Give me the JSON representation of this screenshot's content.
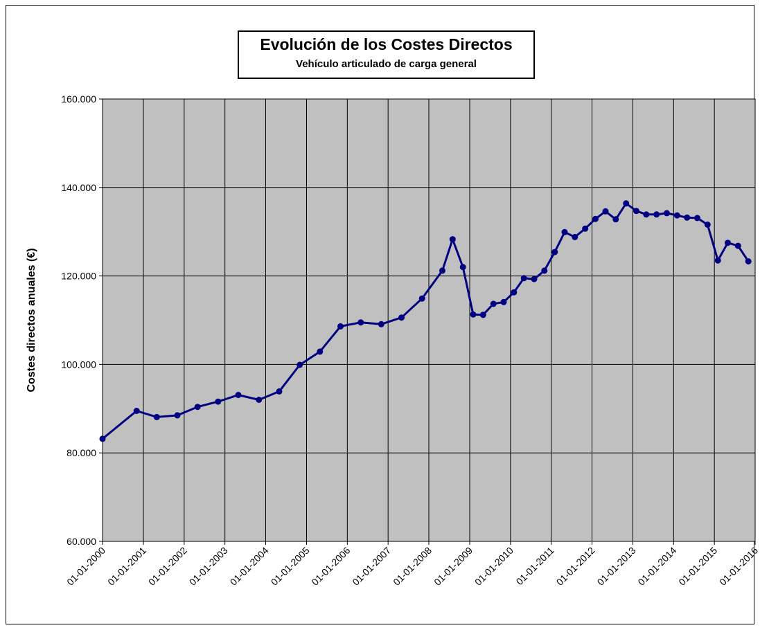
{
  "chart_data": {
    "type": "line",
    "title": "Evolución de los Costes Directos",
    "subtitle": "Vehículo articulado de carga general",
    "xlabel": "",
    "ylabel": "Costes directos anuales (€)",
    "ylim": [
      60000,
      160000
    ],
    "xlim": [
      "2000-01-01",
      "2016-01-01"
    ],
    "y_ticks": [
      "60.000",
      "80.000",
      "100.000",
      "120.000",
      "140.000",
      "160.000"
    ],
    "x_ticks": [
      "01-01-2000",
      "01-01-2001",
      "01-01-2002",
      "01-01-2003",
      "01-01-2004",
      "01-01-2005",
      "01-01-2006",
      "01-01-2007",
      "01-01-2008",
      "01-01-2009",
      "01-01-2010",
      "01-01-2011",
      "01-01-2012",
      "01-01-2013",
      "01-01-2014",
      "01-01-2015",
      "01-01-2016"
    ],
    "grid": true,
    "legend": "none",
    "colors": {
      "plot_background": "#c0c0c0",
      "line": "#000080",
      "grid": "#000000"
    },
    "series": [
      {
        "x": [
          "2000-01-01",
          "2000-11-01",
          "2001-05-01",
          "2001-11-01",
          "2002-05-01",
          "2002-11-01",
          "2003-05-01",
          "2003-11-01",
          "2004-05-01",
          "2004-11-01",
          "2005-05-01",
          "2005-11-01",
          "2006-05-01",
          "2006-11-01",
          "2007-05-01",
          "2007-11-01",
          "2008-05-01",
          "2008-08-01",
          "2008-11-01",
          "2009-02-01",
          "2009-05-01",
          "2009-08-01",
          "2009-11-01",
          "2010-02-01",
          "2010-05-01",
          "2010-08-01",
          "2010-11-01",
          "2011-02-01",
          "2011-05-01",
          "2011-08-01",
          "2011-11-01",
          "2012-02-01",
          "2012-05-01",
          "2012-08-01",
          "2012-11-01",
          "2013-02-01",
          "2013-05-01",
          "2013-08-01",
          "2013-11-01",
          "2014-02-01",
          "2014-05-01",
          "2014-08-01",
          "2014-11-01",
          "2015-02-01",
          "2015-05-01",
          "2015-08-01",
          "2015-11-01"
        ],
        "y": [
          83200,
          89500,
          88100,
          88500,
          90400,
          91600,
          93100,
          92000,
          93900,
          99900,
          102900,
          108600,
          109500,
          109100,
          110600,
          114900,
          121200,
          128300,
          122000,
          111300,
          111200,
          113700,
          114100,
          116300,
          119500,
          119300,
          121200,
          125400,
          129900,
          128800,
          130700,
          132900,
          134600,
          132800,
          136400,
          134700,
          133900,
          133900,
          134200,
          133700,
          133200,
          133100,
          131600,
          123500,
          127500,
          126800,
          123300
        ]
      }
    ]
  }
}
